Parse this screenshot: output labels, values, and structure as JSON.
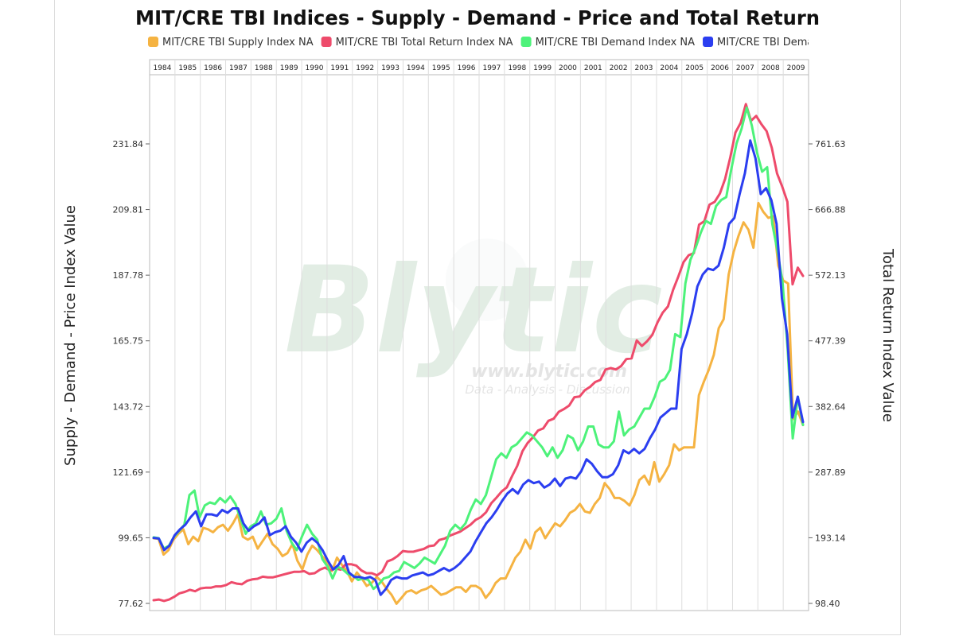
{
  "chart_data": {
    "type": "line",
    "title": "MIT/CRE TBI Indices - Supply - Demand - Price and Total Return",
    "ylabel_left": "Supply - Demand - Price Index Value",
    "ylabel_right": "Total Return Index Value",
    "left_ticks": [
      "77.62",
      "99.65",
      "121.69",
      "143.72",
      "165.75",
      "187.78",
      "209.81",
      "231.84"
    ],
    "right_ticks": [
      "98.40",
      "193.14",
      "287.89",
      "382.64",
      "477.39",
      "572.13",
      "666.88",
      "761.63"
    ],
    "left_range": [
      77.62,
      231.84
    ],
    "right_range": [
      98.4,
      761.63
    ],
    "years": [
      "1984",
      "1985",
      "1986",
      "1987",
      "1988",
      "1989",
      "1990",
      "1991",
      "1992",
      "1993",
      "1994",
      "1995",
      "1996",
      "1997",
      "1998",
      "1999",
      "2000",
      "2001",
      "2002",
      "2003",
      "2004",
      "2005",
      "2006",
      "2007",
      "2008",
      "2009"
    ],
    "grid": "vertical-year-lines",
    "legend_position": "top",
    "watermark": {
      "brand": "Blytic",
      "url": "www.blytic.com",
      "tagline": "Data - Analysis - Discussion"
    },
    "series": [
      {
        "name": "MIT/CRE TBI Supply Index NA",
        "color": "#f5b342",
        "axis": "left",
        "values": [
          99.5,
          99.3,
          94,
          95.5,
          99,
          101,
          102.5,
          97.5,
          100,
          98.5,
          103,
          102.5,
          101.5,
          103.2,
          104,
          102,
          104.5,
          107.5,
          100,
          99,
          100,
          96,
          98.5,
          101,
          97.5,
          96,
          93.5,
          94.5,
          97.5,
          92,
          89,
          94,
          97,
          95.5,
          93.5,
          91.5,
          88.5,
          93,
          90.5,
          88.5,
          85,
          88,
          86,
          83.5,
          84.5,
          86.5,
          85,
          82.5,
          80.5,
          77.5,
          79.5,
          81.5,
          82,
          81,
          82,
          82.5,
          83.5,
          82,
          80.5,
          81,
          82,
          83,
          83,
          81.5,
          83.5,
          83.5,
          82.5,
          79.5,
          81.5,
          84.5,
          86,
          86,
          89.5,
          93,
          95,
          99,
          96,
          101.5,
          103,
          99.5,
          102,
          104.5,
          103.5,
          105.5,
          108,
          109,
          111,
          108.5,
          108,
          111,
          113,
          118,
          116,
          113,
          113,
          112,
          110.5,
          114,
          119,
          120.5,
          117.5,
          125,
          118.5,
          121,
          124,
          131,
          129,
          130,
          130,
          130,
          147.5,
          152,
          156,
          161,
          170,
          173,
          188,
          195.5,
          201,
          205.5,
          203,
          197,
          212,
          209,
          207,
          207.5,
          191,
          186,
          185,
          139.5,
          142,
          137.5
        ]
      },
      {
        "name": "MIT/CRE TBI Total Return Index NA",
        "color": "#ee4b6b",
        "axis": "right",
        "values": [
          103,
          104,
          102,
          104,
          108,
          113,
          115,
          118,
          116,
          120,
          121,
          121,
          123,
          123,
          125,
          129,
          127,
          126,
          131,
          133,
          134,
          137,
          136,
          136,
          138,
          140,
          142,
          144,
          144,
          145,
          141,
          142,
          147,
          150,
          146,
          149,
          147,
          155,
          155,
          153,
          146,
          142,
          142,
          139,
          144,
          159,
          162,
          167,
          174,
          173,
          173,
          175,
          177,
          181,
          182,
          190,
          192,
          196,
          199,
          202,
          207,
          212,
          219,
          223,
          230,
          243,
          251,
          260,
          266,
          282,
          297,
          318,
          330,
          338,
          348,
          351,
          362,
          365,
          375,
          379,
          384,
          396,
          397,
          406,
          411,
          418,
          421,
          436,
          438,
          436,
          441,
          451,
          452,
          478,
          470,
          477,
          486,
          504,
          518,
          527,
          551,
          570,
          591,
          601,
          604,
          645,
          650,
          674,
          678,
          690,
          711,
          742,
          778,
          792,
          819,
          795,
          802,
          790,
          780,
          756,
          719,
          700,
          678,
          559,
          583,
          571
        ]
      },
      {
        "name": "MIT/CRE TBI Demand Index NA",
        "color": "#4df27a",
        "axis": "left",
        "values": [
          99.8,
          99.5,
          96,
          97,
          100,
          102,
          104,
          114,
          115.5,
          106.5,
          110.5,
          111.5,
          111,
          113,
          111.5,
          113.5,
          111,
          106,
          101,
          103.5,
          104.5,
          108.5,
          104,
          104.5,
          106,
          109.5,
          102,
          98,
          95.5,
          100,
          104,
          101,
          99,
          92.5,
          90,
          86,
          90,
          89,
          87.5,
          87,
          85.5,
          86,
          85.5,
          82.5,
          84,
          86,
          86.5,
          88,
          88.5,
          91.5,
          90.5,
          89.5,
          91,
          93,
          92,
          91,
          94,
          97,
          102,
          104,
          102.5,
          104.5,
          109,
          112.5,
          111,
          114,
          120,
          126,
          128,
          126.5,
          130,
          131,
          133,
          135,
          134,
          132,
          130,
          127,
          130,
          126.5,
          129,
          134,
          133,
          129,
          132,
          137,
          137,
          131,
          130,
          130,
          132,
          142,
          134,
          136,
          137,
          140,
          143,
          143,
          147,
          152,
          153,
          156,
          168,
          167,
          185,
          193,
          197,
          202,
          206,
          205,
          211,
          213,
          214,
          223.5,
          232,
          237,
          244,
          238,
          229,
          222.5,
          224,
          205,
          196,
          185.5,
          163,
          133,
          147,
          137.5
        ]
      },
      {
        "name": "MIT/CRE TBI Demand Index NA",
        "color": "#2b3ef0",
        "axis": "left",
        "values": [
          99.6,
          99.4,
          95.5,
          97,
          100.5,
          102.5,
          104,
          106.5,
          108.5,
          103.5,
          107.5,
          107.5,
          107,
          109,
          108,
          109.5,
          109.5,
          104.5,
          102,
          103.5,
          104.5,
          106.5,
          100.5,
          101.5,
          102,
          103.5,
          100,
          98,
          95,
          98,
          99.5,
          98,
          95.5,
          92,
          89,
          90.5,
          93.5,
          88,
          86.5,
          86.5,
          86,
          86.5,
          85.5,
          80.5,
          82.5,
          85.5,
          86.5,
          86,
          86,
          87,
          87.5,
          88,
          87,
          87.5,
          88.5,
          89.5,
          88.5,
          89.5,
          91,
          93,
          95,
          98.5,
          101.5,
          104.5,
          106.5,
          109,
          112,
          114.5,
          116,
          114.5,
          117.5,
          119,
          118,
          118.5,
          116.5,
          117.5,
          119.5,
          117,
          119.5,
          120,
          119.5,
          122,
          126,
          124.5,
          122,
          120,
          120,
          121,
          124,
          129,
          128,
          129.5,
          128,
          129.5,
          133,
          136,
          140,
          141.5,
          143,
          143,
          163,
          168,
          175,
          184,
          188,
          190,
          189.5,
          191,
          197,
          205,
          207,
          215,
          222,
          233,
          227,
          215,
          217,
          213,
          205,
          180,
          168,
          140,
          147,
          138.5
        ]
      }
    ]
  }
}
